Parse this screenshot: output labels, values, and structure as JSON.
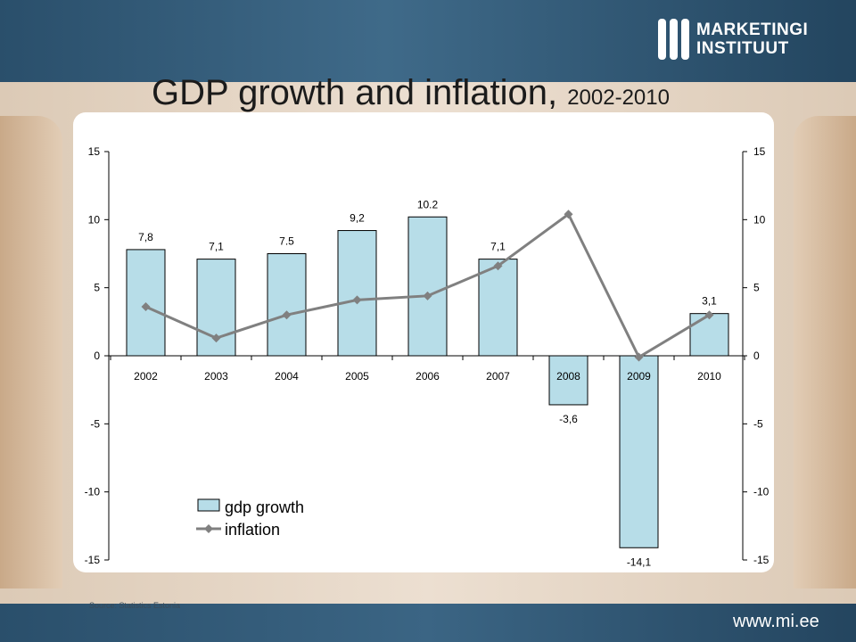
{
  "title": {
    "main": "GDP growth and inflation,",
    "years": "2002-2010"
  },
  "logo": {
    "line1": "MARKETINGI",
    "line2": "INSTITUUT"
  },
  "website": "www.mi.ee",
  "source": "Source: Statistics Estonia",
  "colors": {
    "bar_fill": "#b7dde8",
    "bar_stroke": "#000000",
    "line": "#808080",
    "band": "#2e5677"
  },
  "chart_data": {
    "type": "bar",
    "categories": [
      "2002",
      "2003",
      "2004",
      "2005",
      "2006",
      "2007",
      "2008",
      "2009",
      "2010"
    ],
    "series": [
      {
        "name": "gdp growth",
        "type": "bar",
        "values": [
          7.8,
          7.1,
          7.5,
          9.2,
          10.2,
          7.1,
          -3.6,
          -14.1,
          3.1
        ],
        "labels": [
          "7,8",
          "7,1",
          "7.5",
          "9,2",
          "10.2",
          "7,1",
          "-3,6",
          "-14,1",
          "3,1"
        ]
      },
      {
        "name": "inflation",
        "type": "line",
        "marker": "diamond",
        "values": [
          3.6,
          1.3,
          3.0,
          4.1,
          4.4,
          6.6,
          10.4,
          -0.1,
          3.0
        ]
      }
    ],
    "ylim": [
      -15,
      15
    ],
    "yticks": [
      15,
      10,
      5,
      0,
      -5,
      -10,
      -15
    ],
    "ylim_right": [
      -15,
      15
    ],
    "yticks_right": [
      15,
      10,
      5,
      0,
      -5,
      -10,
      -15
    ],
    "legend": "bottom-left",
    "grid": false
  }
}
